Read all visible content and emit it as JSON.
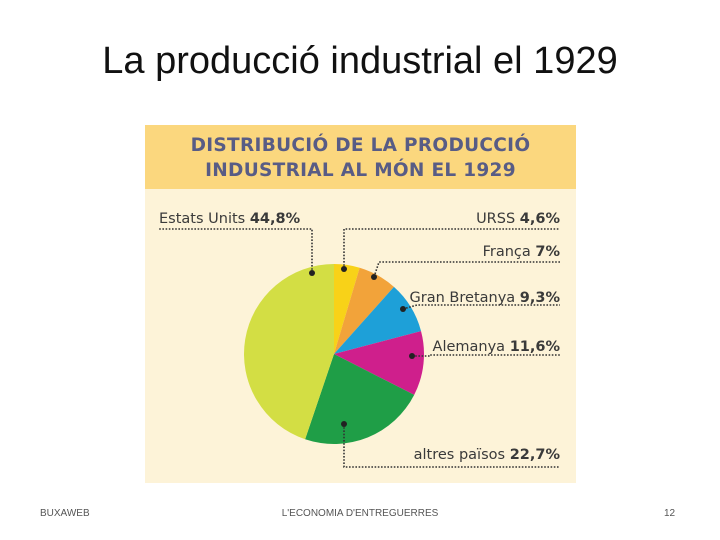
{
  "slide": {
    "title": "La producció industrial el 1929"
  },
  "chart_data": {
    "type": "pie",
    "title_lines": [
      "DISTRIBUCIÓ DE LA PRODUCCIÓ",
      "INDUSTRIAL AL MÓN EL 1929"
    ],
    "slices": [
      {
        "name": "URSS",
        "label": "URSS",
        "value": 4.6,
        "value_label": "4,6%",
        "color": "#f8d218"
      },
      {
        "name": "França",
        "label": "França",
        "value": 7.0,
        "value_label": "7%",
        "color": "#f2a33a"
      },
      {
        "name": "Gran Bretanya",
        "label": "Gran Bretanya",
        "value": 9.3,
        "value_label": "9,3%",
        "color": "#1ea0d8"
      },
      {
        "name": "Alemanya",
        "label": "Alemanya",
        "value": 11.6,
        "value_label": "11,6%",
        "color": "#cf1f8c"
      },
      {
        "name": "altres països",
        "label": "altres països",
        "value": 22.7,
        "value_label": "22,7%",
        "color": "#1f9e47"
      },
      {
        "name": "Estats Units",
        "label": "Estats Units",
        "value": 44.8,
        "value_label": "44,8%",
        "color": "#d3de44"
      }
    ],
    "colors": {
      "banner_bg": "#fbd77e",
      "panel_bg": "#fdf3d8",
      "title_text": "#585c85",
      "label_text": "#3a3a3a",
      "leader": "#333333"
    }
  },
  "footer": {
    "left": "BUXAWEB",
    "center": "L'ECONOMIA D'ENTREGUERRES",
    "page_number": "12"
  }
}
